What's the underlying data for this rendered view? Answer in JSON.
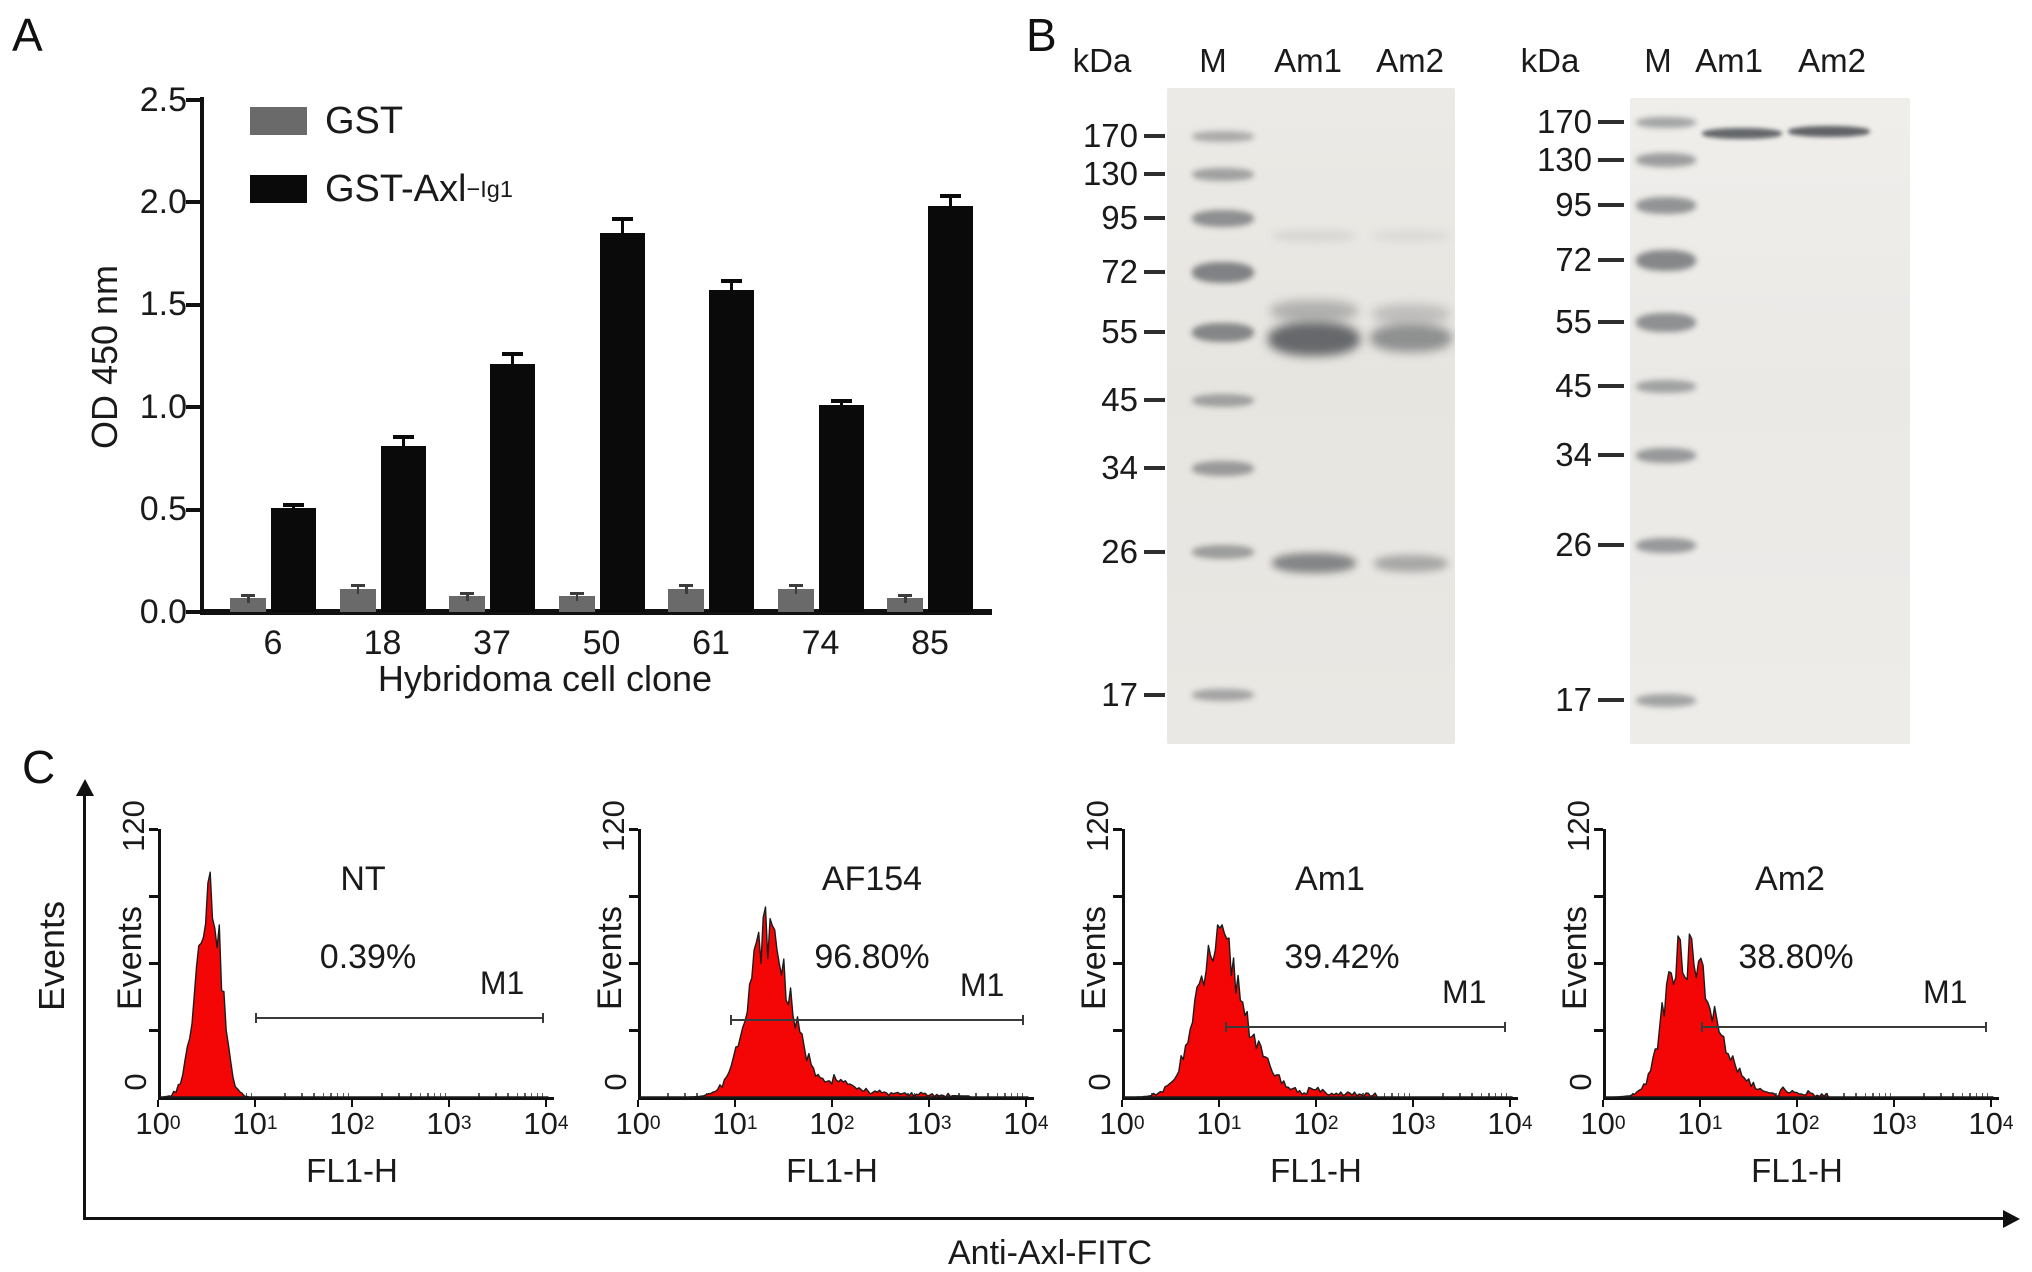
{
  "figure": {
    "panel_a_label": "A",
    "panel_b_label": "B",
    "panel_c_label": "C"
  },
  "panel_a": {
    "ylabel": "OD 450 nm",
    "xlabel": "Hybridoma cell clone",
    "yticks": [
      "0.0",
      "0.5",
      "1.0",
      "1.5",
      "2.0",
      "2.5"
    ],
    "legend": [
      {
        "label": "GST",
        "sup": "",
        "color": "#6a6a6a"
      },
      {
        "label": "GST-Axl",
        "sup": "−Ig1",
        "color": "#0a0a0a"
      }
    ]
  },
  "panel_b": {
    "gels": [
      {
        "kda_header": "kDa",
        "lane_headers": [
          "M",
          "Am1",
          "Am2"
        ],
        "ladder": [
          "170",
          "130",
          "95",
          "72",
          "55",
          "45",
          "34",
          "26",
          "17"
        ]
      },
      {
        "kda_header": "kDa",
        "lane_headers": [
          "M",
          "Am1",
          "Am2"
        ],
        "ladder": [
          "170",
          "130",
          "95",
          "72",
          "55",
          "45",
          "34",
          "26",
          "17"
        ]
      }
    ]
  },
  "panel_c": {
    "ylabel": "Events",
    "xlabel": "Anti-Axl-FITC",
    "plot_ylabel": "Events",
    "ymax": "120",
    "ymin": "0",
    "x_axis_label": "FL1-H",
    "xticks": [
      {
        "base": "10",
        "exp": "0"
      },
      {
        "base": "10",
        "exp": "1"
      },
      {
        "base": "10",
        "exp": "2"
      },
      {
        "base": "10",
        "exp": "3"
      },
      {
        "base": "10",
        "exp": "4"
      }
    ],
    "plots": [
      {
        "name": "NT",
        "percent": "0.39%",
        "marker": "M1"
      },
      {
        "name": "AF154",
        "percent": "96.80%",
        "marker": "M1"
      },
      {
        "name": "Am1",
        "percent": "39.42%",
        "marker": "M1"
      },
      {
        "name": "Am2",
        "percent": "38.80%",
        "marker": "M1"
      }
    ]
  },
  "chart_data": [
    {
      "type": "bar",
      "title": "Hybridoma clone ELISA screening",
      "categories": [
        "6",
        "18",
        "37",
        "50",
        "61",
        "74",
        "85"
      ],
      "series": [
        {
          "name": "GST",
          "color": "#6a6a6a",
          "values": [
            0.07,
            0.11,
            0.08,
            0.08,
            0.11,
            0.11,
            0.07
          ],
          "errors": [
            0.015,
            0.02,
            0.015,
            0.015,
            0.02,
            0.02,
            0.012
          ]
        },
        {
          "name": "GST-Axl−Ig1",
          "color": "#0a0a0a",
          "values": [
            0.51,
            0.81,
            1.21,
            1.85,
            1.57,
            1.01,
            1.98
          ],
          "errors": [
            0.012,
            0.045,
            0.05,
            0.07,
            0.045,
            0.02,
            0.05
          ]
        }
      ],
      "xlabel": "Hybridoma cell clone",
      "ylabel": "OD 450 nm",
      "ylim": [
        0,
        2.5
      ],
      "ytick_step": 0.5,
      "grid": false,
      "legend_position": "upper-left"
    },
    {
      "type": "area",
      "subtype": "flow-histogram",
      "name": "NT",
      "xlabel": "FL1-H",
      "ylabel": "Events",
      "xscale": "log",
      "xlim": [
        1,
        10000
      ],
      "ylim": [
        0,
        120
      ],
      "color": "#f40606",
      "seed": 3,
      "peaks": [
        {
          "mu_log": 0.48,
          "sigma_log": 0.12,
          "height": 86
        },
        {
          "mu_log": 0.6,
          "sigma_log": 0.07,
          "height": 20
        }
      ],
      "tail": null,
      "gate": {
        "label": "M1",
        "from_log": 1.0,
        "to_log": 3.96,
        "events": 36,
        "percent_gated": 0.39
      }
    },
    {
      "type": "area",
      "subtype": "flow-histogram",
      "name": "AF154",
      "xlabel": "FL1-H",
      "ylabel": "Events",
      "xscale": "log",
      "xlim": [
        1,
        10000
      ],
      "ylim": [
        0,
        120
      ],
      "color": "#f40606",
      "seed": 7,
      "peaks": [
        {
          "mu_log": 1.3,
          "sigma_log": 0.2,
          "height": 64
        },
        {
          "mu_log": 1.55,
          "sigma_log": 0.3,
          "height": 14
        }
      ],
      "tail": {
        "from_log": 2.0,
        "to_log": 3.4,
        "height": 4.5,
        "decay": 0.6
      },
      "gate": {
        "label": "M1",
        "from_log": 0.95,
        "to_log": 3.96,
        "events": 35,
        "percent_gated": 96.8
      }
    },
    {
      "type": "area",
      "subtype": "flow-histogram",
      "name": "Am1",
      "xlabel": "FL1-H",
      "ylabel": "Events",
      "xscale": "log",
      "xlim": [
        1,
        10000
      ],
      "ylim": [
        0,
        120
      ],
      "color": "#f40606",
      "seed": 11,
      "peaks": [
        {
          "mu_log": 0.95,
          "sigma_log": 0.22,
          "height": 58
        },
        {
          "mu_log": 1.25,
          "sigma_log": 0.28,
          "height": 16
        }
      ],
      "tail": {
        "from_log": 1.9,
        "to_log": 2.6,
        "height": 3,
        "decay": 0.5
      },
      "gate": {
        "label": "M1",
        "from_log": 1.06,
        "to_log": 3.94,
        "events": 32,
        "percent_gated": 39.42
      }
    },
    {
      "type": "area",
      "subtype": "flow-histogram",
      "name": "Am2",
      "xlabel": "FL1-H",
      "ylabel": "Events",
      "xscale": "log",
      "xlim": [
        1,
        10000
      ],
      "ylim": [
        0,
        120
      ],
      "color": "#f40606",
      "seed": 17,
      "peaks": [
        {
          "mu_log": 0.85,
          "sigma_log": 0.2,
          "height": 54
        },
        {
          "mu_log": 0.65,
          "sigma_log": 0.09,
          "height": 18
        },
        {
          "mu_log": 1.15,
          "sigma_log": 0.25,
          "height": 15
        }
      ],
      "tail": {
        "from_log": 1.8,
        "to_log": 2.3,
        "height": 3,
        "decay": 0.5
      },
      "gate": {
        "label": "M1",
        "from_log": 1.01,
        "to_log": 3.94,
        "events": 32,
        "percent_gated": 38.8
      }
    }
  ]
}
